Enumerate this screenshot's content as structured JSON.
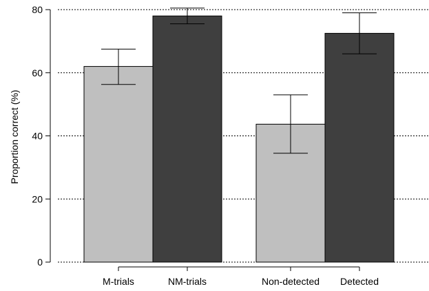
{
  "chart_data": {
    "type": "bar",
    "ylabel": "Proportion correct (%)",
    "ylim": [
      0,
      80
    ],
    "yticks": [
      0,
      20,
      40,
      60,
      80
    ],
    "grid": true,
    "bar_colors": [
      "#bfbfbf",
      "#3f3f3f"
    ],
    "categories": [
      "M-trials",
      "NM-trials",
      "Non-detected",
      "Detected"
    ],
    "groups": [
      {
        "members": [
          0,
          1
        ]
      },
      {
        "members": [
          2,
          3
        ]
      }
    ],
    "values": [
      62,
      78,
      43.7,
      72.5
    ],
    "error_low": [
      56.3,
      75.5,
      34.5,
      66
    ],
    "error_high": [
      67.5,
      80.5,
      53,
      79
    ]
  }
}
